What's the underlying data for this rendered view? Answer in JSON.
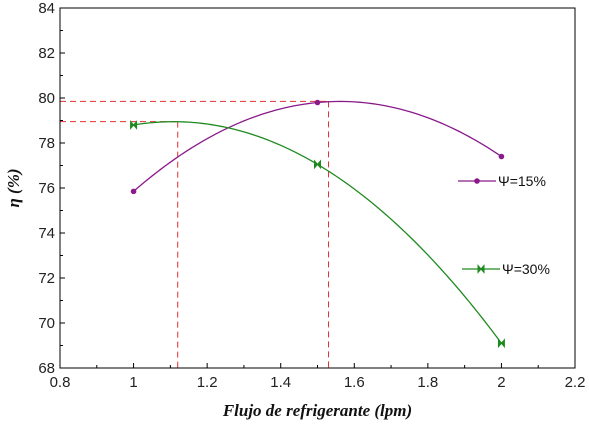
{
  "chart_data": {
    "type": "line",
    "xlabel": "Flujo de refrigerante (lpm)",
    "ylabel": "η (%)",
    "xlim": [
      0.8,
      2.2
    ],
    "ylim": [
      68,
      84
    ],
    "xticks": [
      "0.8",
      "1",
      "1.2",
      "1.4",
      "1.6",
      "1.8",
      "2",
      "2.2"
    ],
    "yticks": [
      "68",
      "70",
      "72",
      "74",
      "76",
      "78",
      "80",
      "82",
      "84"
    ],
    "grid": false,
    "series": [
      {
        "name": "Ψ=15%",
        "color": "#8a1a8a",
        "marker": "circle",
        "points": [
          [
            1.0,
            75.85
          ],
          [
            1.5,
            79.8
          ],
          [
            2.0,
            77.4
          ]
        ]
      },
      {
        "name": "Ψ=30%",
        "color": "#1f8a1f",
        "marker": "bowtie",
        "points": [
          [
            1.0,
            78.8
          ],
          [
            1.5,
            77.05
          ],
          [
            2.0,
            69.1
          ]
        ]
      }
    ],
    "reference_lines": [
      {
        "x": 1.53,
        "y": 79.85,
        "color": "#e03030"
      },
      {
        "x": 1.12,
        "y": 78.95,
        "color": "#e03030"
      }
    ]
  }
}
